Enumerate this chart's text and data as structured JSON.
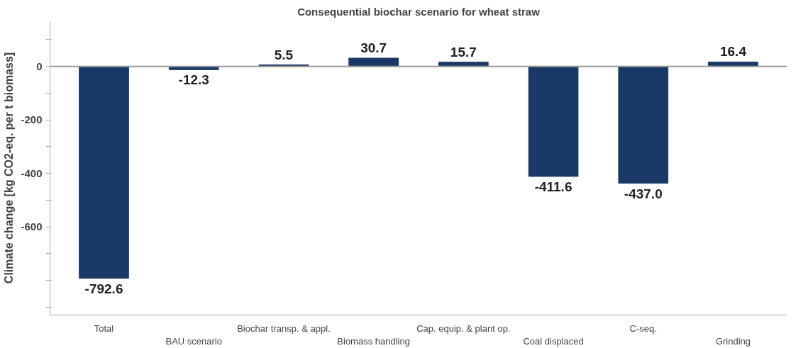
{
  "chart_data": {
    "type": "bar",
    "title": "Consequential biochar scenario for wheat straw",
    "ylabel": "Climate change [kg CO2-eq. per t biomass]",
    "categories": [
      "Total",
      "BAU scenario",
      "Biochar transp. & appl.",
      "Biomass handling",
      "Cap. equip. & plant op.",
      "Coal displaced",
      "C-seq.",
      "Grinding"
    ],
    "values": [
      -792.6,
      -12.3,
      5.5,
      30.7,
      15.7,
      -411.6,
      -437.0,
      16.4
    ],
    "value_labels": [
      "-792.6",
      "-12.3",
      "5.5",
      "30.7",
      "15.7",
      "-411.6",
      "-437.0",
      "16.4"
    ],
    "color": "#1b3966",
    "grid": false,
    "ylim": [
      -930,
      170
    ],
    "yticks": [
      {
        "value": 100,
        "label": null
      },
      0,
      {
        "value": -100,
        "label": null
      },
      -200,
      {
        "value": -300,
        "label": null
      },
      -400,
      {
        "value": -500,
        "label": null
      },
      -600,
      {
        "value": -700,
        "label": null
      },
      {
        "value": -800,
        "label": null
      },
      {
        "value": -900,
        "label": null
      }
    ],
    "ref_lines": [
      {
        "axis": "y",
        "value": 0,
        "color": "#999999"
      }
    ]
  }
}
